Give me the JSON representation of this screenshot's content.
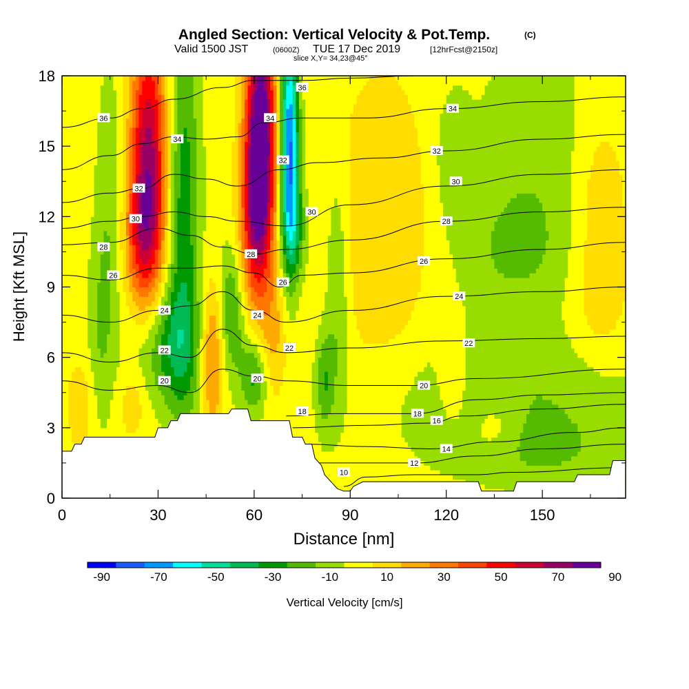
{
  "header": {
    "title": "Angled Section: Vertical Velocity & Pot.Temp.",
    "title_mark": "(C)",
    "valid_prefix": "Valid 1500 JST",
    "valid_utc": "(0600Z)",
    "valid_date": "TUE 17 Dec 2019",
    "forecast": "[12hrFcst@2150z]",
    "slice": "slice X,Y= 34,23@45°"
  },
  "colorbar": {
    "label": "Vertical Velocity [cm/s]",
    "colors": [
      "#0000ff",
      "#1a5cff",
      "#0099ff",
      "#00ffff",
      "#00dd99",
      "#00bb55",
      "#009900",
      "#55bb00",
      "#99dd00",
      "#ffff00",
      "#ffdd00",
      "#ffaa00",
      "#ff7700",
      "#ff4400",
      "#ff0000",
      "#cc0033",
      "#990066",
      "#660099"
    ],
    "ticks": [
      "-90",
      "-70",
      "-50",
      "-30",
      "-10",
      "10",
      "30",
      "50",
      "70",
      "90"
    ]
  },
  "chart_data": {
    "type": "heatmap",
    "title": "Angled Section: Vertical Velocity & Pot.Temp.",
    "xlabel": "Distance [nm]",
    "ylabel": "Height [Kft MSL]",
    "xlim": [
      0,
      176
    ],
    "ylim": [
      0,
      18
    ],
    "xticks": [
      0,
      30,
      60,
      90,
      120,
      150
    ],
    "yticks": [
      0,
      3,
      6,
      9,
      12,
      15,
      18
    ],
    "xtick_labels": [
      "0",
      "30",
      "60",
      "90",
      "120",
      "150"
    ],
    "ytick_labels": [
      "0",
      "3",
      "6",
      "9",
      "12",
      "15",
      "18"
    ],
    "grid": false,
    "background_w": 5,
    "terrain": [
      [
        0,
        2.0
      ],
      [
        3,
        2.0
      ],
      [
        4,
        2.3
      ],
      [
        6,
        2.3
      ],
      [
        7,
        2.6
      ],
      [
        29,
        2.6
      ],
      [
        30,
        3.0
      ],
      [
        33,
        3.0
      ],
      [
        34,
        3.3
      ],
      [
        36,
        3.3
      ],
      [
        37,
        3.6
      ],
      [
        52,
        3.6
      ],
      [
        53,
        3.8
      ],
      [
        58,
        3.8
      ],
      [
        59,
        3.3
      ],
      [
        71,
        3.3
      ],
      [
        72,
        2.6
      ],
      [
        75,
        2.6
      ],
      [
        76,
        2.3
      ],
      [
        78,
        2.3
      ],
      [
        79,
        1.7
      ],
      [
        81,
        1.4
      ],
      [
        82,
        1.0
      ],
      [
        84,
        0.7
      ],
      [
        86,
        0.4
      ],
      [
        88,
        0.3
      ],
      [
        90,
        0.3
      ],
      [
        91,
        0.5
      ],
      [
        94,
        0.7
      ],
      [
        130,
        0.7
      ],
      [
        131,
        0.3
      ],
      [
        141,
        0.3
      ],
      [
        142,
        0.7
      ],
      [
        160,
        0.7
      ],
      [
        161,
        1.0
      ],
      [
        171,
        1.0
      ],
      [
        172,
        1.6
      ],
      [
        176,
        1.6
      ]
    ],
    "velocity_features": [
      {
        "x": 27,
        "y": 14.5,
        "sx": 4,
        "sy": 4.0,
        "w": 68
      },
      {
        "x": 25,
        "y": 11.0,
        "sx": 4,
        "sy": 2.0,
        "w": 28
      },
      {
        "x": 62,
        "y": 15.5,
        "sx": 3.2,
        "sy": 3.5,
        "w": 95
      },
      {
        "x": 60,
        "y": 11.5,
        "sx": 3.5,
        "sy": 2.5,
        "w": 38
      },
      {
        "x": 71,
        "y": 15.0,
        "sx": 2.0,
        "sy": 3.5,
        "w": -78
      },
      {
        "x": 73,
        "y": 11.5,
        "sx": 2.5,
        "sy": 1.5,
        "w": -22
      },
      {
        "x": 38,
        "y": 12.0,
        "sx": 3.5,
        "sy": 6.0,
        "w": -32
      },
      {
        "x": 33,
        "y": 6.5,
        "sx": 7,
        "sy": 1.8,
        "w": -30
      },
      {
        "x": 47,
        "y": 6.0,
        "sx": 2.5,
        "sy": 2.2,
        "w": 32
      },
      {
        "x": 53,
        "y": 8.0,
        "sx": 3,
        "sy": 2.0,
        "w": -26
      },
      {
        "x": 60,
        "y": 5.2,
        "sx": 3,
        "sy": 1.2,
        "w": -28
      },
      {
        "x": 66,
        "y": 7.0,
        "sx": 3,
        "sy": 2.0,
        "w": 18
      },
      {
        "x": 86,
        "y": 9.0,
        "sx": 2.5,
        "sy": 3.5,
        "w": -18
      },
      {
        "x": 82,
        "y": 5.0,
        "sx": 2,
        "sy": 1.5,
        "w": -22
      },
      {
        "x": 15,
        "y": 13.0,
        "sx": 3,
        "sy": 4.0,
        "w": -14
      },
      {
        "x": 12,
        "y": 7.0,
        "sx": 3,
        "sy": 3.0,
        "w": -14
      },
      {
        "x": 6,
        "y": 4.0,
        "sx": 3,
        "sy": 1.5,
        "w": 12
      },
      {
        "x": 22,
        "y": 4.0,
        "sx": 3,
        "sy": 1.0,
        "w": 12
      },
      {
        "x": 100,
        "y": 11.5,
        "sx": 10,
        "sy": 4.5,
        "w": 15
      },
      {
        "x": 122,
        "y": 14.5,
        "sx": 4,
        "sy": 2.0,
        "w": -12
      },
      {
        "x": 122,
        "y": 5.0,
        "sx": 3,
        "sy": 1.3,
        "w": 14
      },
      {
        "x": 140,
        "y": 10.5,
        "sx": 12,
        "sy": 1.8,
        "w": -12
      },
      {
        "x": 148,
        "y": 14.5,
        "sx": 14,
        "sy": 4.0,
        "w": -12
      },
      {
        "x": 168,
        "y": 13.0,
        "sx": 6,
        "sy": 2.5,
        "w": 13
      },
      {
        "x": 168,
        "y": 8.5,
        "sx": 6,
        "sy": 2.0,
        "w": 12
      },
      {
        "x": 140,
        "y": 4.0,
        "sx": 30,
        "sy": 2.2,
        "w": -15
      },
      {
        "x": 135,
        "y": 3.0,
        "sx": 6,
        "sy": 1.0,
        "w": 13
      },
      {
        "x": 150,
        "y": 2.0,
        "sx": 14,
        "sy": 1.0,
        "w": -10
      }
    ],
    "theta_levels": [
      10,
      12,
      14,
      16,
      18,
      20,
      22,
      24,
      26,
      28,
      30,
      32,
      34,
      36
    ],
    "theta_series": [
      {
        "level": 10,
        "points": [
          [
            88,
            0.5
          ],
          [
            95,
            0.9
          ],
          [
            110,
            1.0
          ],
          [
            130,
            1.0
          ],
          [
            140,
            1.1
          ],
          [
            176,
            1.3
          ]
        ]
      },
      {
        "level": 12,
        "points": [
          [
            80,
            1.5
          ],
          [
            92,
            1.5
          ],
          [
            110,
            1.5
          ],
          [
            130,
            1.8
          ],
          [
            150,
            2.1
          ],
          [
            176,
            2.3
          ]
        ]
      },
      {
        "level": 14,
        "points": [
          [
            76,
            2.3
          ],
          [
            95,
            2.2
          ],
          [
            115,
            2.1
          ],
          [
            135,
            2.4
          ],
          [
            160,
            2.8
          ],
          [
            176,
            3.0
          ]
        ]
      },
      {
        "level": 16,
        "points": [
          [
            72,
            3.0
          ],
          [
            95,
            3.1
          ],
          [
            115,
            3.2
          ],
          [
            125,
            3.5
          ],
          [
            150,
            3.8
          ],
          [
            176,
            4.0
          ]
        ]
      },
      {
        "level": 18,
        "points": [
          [
            70,
            3.5
          ],
          [
            85,
            3.6
          ],
          [
            110,
            3.6
          ],
          [
            130,
            4.2
          ],
          [
            150,
            4.4
          ],
          [
            176,
            4.5
          ]
        ]
      },
      {
        "level": 20,
        "points": [
          [
            0,
            5.0
          ],
          [
            15,
            4.6
          ],
          [
            30,
            4.8
          ],
          [
            40,
            4.5
          ],
          [
            50,
            5.5
          ],
          [
            60,
            5.2
          ],
          [
            70,
            5.0
          ],
          [
            90,
            4.8
          ],
          [
            110,
            4.8
          ],
          [
            130,
            5.1
          ],
          [
            176,
            5.5
          ]
        ]
      },
      {
        "level": 22,
        "points": [
          [
            0,
            6.2
          ],
          [
            15,
            5.8
          ],
          [
            30,
            6.2
          ],
          [
            40,
            6.0
          ],
          [
            50,
            7.2
          ],
          [
            60,
            6.5
          ],
          [
            70,
            6.2
          ],
          [
            90,
            6.4
          ],
          [
            120,
            6.7
          ],
          [
            150,
            6.8
          ],
          [
            176,
            6.9
          ]
        ]
      },
      {
        "level": 24,
        "points": [
          [
            0,
            7.8
          ],
          [
            15,
            7.5
          ],
          [
            30,
            8.0
          ],
          [
            40,
            8.2
          ],
          [
            50,
            8.8
          ],
          [
            60,
            8.0
          ],
          [
            70,
            7.5
          ],
          [
            90,
            8.0
          ],
          [
            120,
            8.6
          ],
          [
            150,
            8.8
          ],
          [
            176,
            9.0
          ]
        ]
      },
      {
        "level": 26,
        "points": [
          [
            0,
            9.5
          ],
          [
            15,
            9.3
          ],
          [
            30,
            9.8
          ],
          [
            40,
            9.8
          ],
          [
            50,
            9.9
          ],
          [
            60,
            9.6
          ],
          [
            68,
            9.0
          ],
          [
            75,
            9.5
          ],
          [
            90,
            9.6
          ],
          [
            120,
            10.2
          ],
          [
            150,
            10.6
          ],
          [
            176,
            10.9
          ]
        ]
      },
      {
        "level": 28,
        "points": [
          [
            0,
            10.8
          ],
          [
            15,
            10.9
          ],
          [
            30,
            11.5
          ],
          [
            40,
            11.2
          ],
          [
            50,
            10.7
          ],
          [
            60,
            10.4
          ],
          [
            70,
            10.6
          ],
          [
            90,
            11.0
          ],
          [
            120,
            11.8
          ],
          [
            150,
            12.2
          ],
          [
            176,
            12.4
          ]
        ]
      },
      {
        "level": 30,
        "points": [
          [
            0,
            11.5
          ],
          [
            15,
            11.8
          ],
          [
            25,
            12.0
          ],
          [
            35,
            12.2
          ],
          [
            45,
            12.0
          ],
          [
            55,
            11.8
          ],
          [
            70,
            11.6
          ],
          [
            90,
            12.5
          ],
          [
            120,
            13.3
          ],
          [
            150,
            13.8
          ],
          [
            176,
            14.0
          ]
        ]
      },
      {
        "level": 32,
        "points": [
          [
            0,
            12.6
          ],
          [
            15,
            13.0
          ],
          [
            25,
            13.2
          ],
          [
            35,
            13.8
          ],
          [
            45,
            13.6
          ],
          [
            55,
            13.3
          ],
          [
            68,
            14.0
          ],
          [
            80,
            14.3
          ],
          [
            100,
            14.5
          ],
          [
            120,
            14.8
          ],
          [
            150,
            15.3
          ],
          [
            176,
            15.5
          ]
        ]
      },
      {
        "level": 34,
        "points": [
          [
            0,
            14.0
          ],
          [
            15,
            14.6
          ],
          [
            25,
            15.1
          ],
          [
            35,
            15.4
          ],
          [
            45,
            15.3
          ],
          [
            55,
            15.4
          ],
          [
            63,
            16.0
          ],
          [
            75,
            16.2
          ],
          [
            95,
            16.2
          ],
          [
            120,
            16.6
          ],
          [
            150,
            16.9
          ],
          [
            176,
            17.1
          ]
        ]
      },
      {
        "level": 36,
        "points": [
          [
            0,
            15.8
          ],
          [
            15,
            16.2
          ],
          [
            25,
            16.6
          ],
          [
            35,
            17.0
          ],
          [
            50,
            17.5
          ],
          [
            60,
            17.8
          ],
          [
            75,
            17.8
          ],
          [
            90,
            17.9
          ],
          [
            110,
            18.0
          ]
        ]
      }
    ],
    "theta_labels": [
      {
        "text": "36",
        "x": 13,
        "y": 16.2
      },
      {
        "text": "34",
        "x": 36,
        "y": 15.3
      },
      {
        "text": "32",
        "x": 24,
        "y": 13.2
      },
      {
        "text": "30",
        "x": 23,
        "y": 11.9
      },
      {
        "text": "28",
        "x": 13,
        "y": 10.7
      },
      {
        "text": "26",
        "x": 16,
        "y": 9.5
      },
      {
        "text": "24",
        "x": 32,
        "y": 8.0
      },
      {
        "text": "22",
        "x": 32,
        "y": 6.3
      },
      {
        "text": "20",
        "x": 32,
        "y": 5.0
      },
      {
        "text": "36",
        "x": 75,
        "y": 17.5
      },
      {
        "text": "34",
        "x": 65,
        "y": 16.2
      },
      {
        "text": "32",
        "x": 69,
        "y": 14.4
      },
      {
        "text": "30",
        "x": 78,
        "y": 12.2
      },
      {
        "text": "28",
        "x": 59,
        "y": 10.4
      },
      {
        "text": "26",
        "x": 69,
        "y": 9.2
      },
      {
        "text": "24",
        "x": 61,
        "y": 7.8
      },
      {
        "text": "22",
        "x": 71,
        "y": 6.4
      },
      {
        "text": "20",
        "x": 61,
        "y": 5.1
      },
      {
        "text": "18",
        "x": 75,
        "y": 3.7
      },
      {
        "text": "34",
        "x": 122,
        "y": 16.6
      },
      {
        "text": "32",
        "x": 117,
        "y": 14.8
      },
      {
        "text": "30",
        "x": 123,
        "y": 13.5
      },
      {
        "text": "28",
        "x": 120,
        "y": 11.8
      },
      {
        "text": "26",
        "x": 113,
        "y": 10.1
      },
      {
        "text": "24",
        "x": 124,
        "y": 8.6
      },
      {
        "text": "22",
        "x": 127,
        "y": 6.6
      },
      {
        "text": "20",
        "x": 113,
        "y": 4.8
      },
      {
        "text": "18",
        "x": 111,
        "y": 3.6
      },
      {
        "text": "16",
        "x": 117,
        "y": 3.3
      },
      {
        "text": "14",
        "x": 120,
        "y": 2.1
      },
      {
        "text": "12",
        "x": 110,
        "y": 1.5
      },
      {
        "text": "10",
        "x": 88,
        "y": 1.1
      }
    ]
  }
}
